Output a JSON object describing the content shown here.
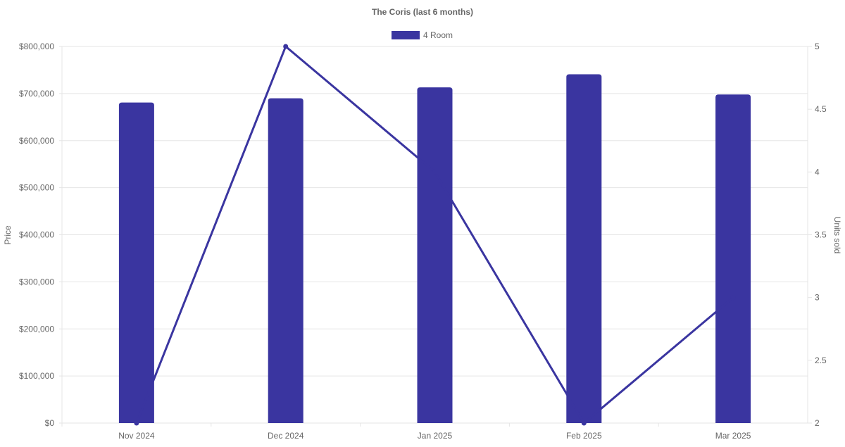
{
  "chart_data": {
    "type": "bar",
    "title": "The Coris (last 6 months)",
    "categories": [
      "Nov 2024",
      "Dec 2024",
      "Jan 2025",
      "Feb 2025",
      "Mar 2025"
    ],
    "series": [
      {
        "name": "4 Room",
        "type": "bar",
        "axis": "left",
        "values": [
          681000,
          690000,
          713000,
          741000,
          698000
        ]
      },
      {
        "type": "line",
        "axis": "right",
        "values": [
          2,
          5,
          4,
          2,
          3
        ]
      }
    ],
    "ylabel": "Price",
    "y2label": "Units sold",
    "ylim": [
      0,
      800000
    ],
    "y2lim": [
      2,
      5
    ],
    "yticks": [
      "$0",
      "$100,000",
      "$200,000",
      "$300,000",
      "$400,000",
      "$500,000",
      "$600,000",
      "$700,000",
      "$800,000"
    ],
    "y2ticks": [
      "2",
      "2.5",
      "3",
      "3.5",
      "4",
      "4.5",
      "5"
    ],
    "grid": true,
    "legend": "top",
    "color": "#3a35a0"
  }
}
